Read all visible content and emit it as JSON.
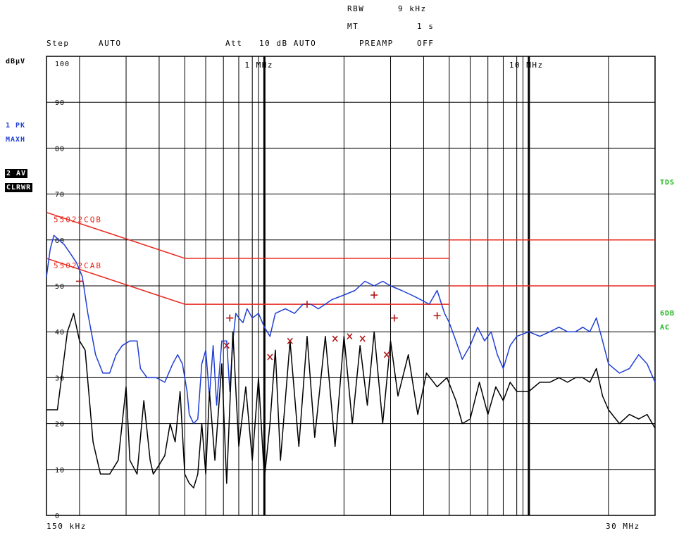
{
  "header": {
    "rbw_label": "RBW",
    "rbw_value": "9 kHz",
    "mt_label": "MT",
    "mt_value": "1 s",
    "step_label": "Step",
    "step_value": "AUTO",
    "att_label": "Att",
    "att_value": "10 dB AUTO",
    "preamp_label": "PREAMP",
    "preamp_value": "OFF"
  },
  "left_panel": {
    "unit": "dBµV",
    "trace1_line1": "1 PK",
    "trace1_line2": "MAXH",
    "trace2_line1": "2 AV",
    "trace2_line2": "CLRWR"
  },
  "right_panel": {
    "tds": "TDS",
    "db6": "6DB",
    "ac": "AC"
  },
  "colors": {
    "trace1": "#1f3fd6",
    "trace2": "#000000",
    "limit": "#e8281e",
    "markers": "#b01818",
    "side_text": "#18b418"
  },
  "chart_data": {
    "type": "line",
    "x_scale": "log",
    "xlim_mhz": [
      0.15,
      30
    ],
    "ylim": [
      0,
      100
    ],
    "y_ticks": [
      0,
      10,
      20,
      30,
      40,
      50,
      60,
      70,
      80,
      90,
      100
    ],
    "x_tick_labels": [
      {
        "label": "1 MHz",
        "x_mhz": 1
      },
      {
        "label": "10 MHz",
        "x_mhz": 10
      }
    ],
    "x_start_label": "150 kHz",
    "x_end_label": "30 MHz",
    "limit_lines": [
      {
        "name": "55022CQB",
        "points": [
          [
            0.15,
            66
          ],
          [
            0.5,
            56
          ],
          [
            5,
            56
          ],
          [
            5,
            60
          ],
          [
            30,
            60
          ]
        ]
      },
      {
        "name": "55022CAB",
        "points": [
          [
            0.15,
            56
          ],
          [
            0.5,
            46
          ],
          [
            5,
            46
          ],
          [
            5,
            50
          ],
          [
            30,
            50
          ]
        ]
      }
    ],
    "series": [
      {
        "name": "1 PK MAXH",
        "points": [
          [
            0.15,
            52
          ],
          [
            0.155,
            58
          ],
          [
            0.16,
            61
          ],
          [
            0.175,
            59
          ],
          [
            0.185,
            57
          ],
          [
            0.195,
            55
          ],
          [
            0.205,
            52
          ],
          [
            0.215,
            44
          ],
          [
            0.23,
            35
          ],
          [
            0.245,
            31
          ],
          [
            0.26,
            31
          ],
          [
            0.275,
            35
          ],
          [
            0.29,
            37
          ],
          [
            0.31,
            38
          ],
          [
            0.33,
            38
          ],
          [
            0.34,
            32
          ],
          [
            0.36,
            30
          ],
          [
            0.39,
            30
          ],
          [
            0.42,
            29
          ],
          [
            0.45,
            33
          ],
          [
            0.47,
            35
          ],
          [
            0.49,
            33
          ],
          [
            0.51,
            27
          ],
          [
            0.52,
            22
          ],
          [
            0.54,
            20
          ],
          [
            0.56,
            21
          ],
          [
            0.58,
            33
          ],
          [
            0.6,
            36
          ],
          [
            0.62,
            26
          ],
          [
            0.64,
            37
          ],
          [
            0.66,
            24
          ],
          [
            0.69,
            38
          ],
          [
            0.72,
            38
          ],
          [
            0.74,
            27
          ],
          [
            0.76,
            38
          ],
          [
            0.78,
            44
          ],
          [
            0.8,
            43
          ],
          [
            0.83,
            42
          ],
          [
            0.86,
            45
          ],
          [
            0.9,
            43
          ],
          [
            0.95,
            44
          ],
          [
            1.0,
            41
          ],
          [
            1.05,
            39
          ],
          [
            1.1,
            44
          ],
          [
            1.2,
            45
          ],
          [
            1.3,
            44
          ],
          [
            1.4,
            46
          ],
          [
            1.5,
            46
          ],
          [
            1.6,
            45
          ],
          [
            1.8,
            47
          ],
          [
            2.0,
            48
          ],
          [
            2.2,
            49
          ],
          [
            2.4,
            51
          ],
          [
            2.6,
            50
          ],
          [
            2.8,
            51
          ],
          [
            3.0,
            50
          ],
          [
            3.3,
            49
          ],
          [
            3.6,
            48
          ],
          [
            3.9,
            47
          ],
          [
            4.2,
            46
          ],
          [
            4.5,
            49
          ],
          [
            4.8,
            44
          ],
          [
            5.0,
            42
          ],
          [
            5.3,
            38
          ],
          [
            5.6,
            34
          ],
          [
            6.0,
            37
          ],
          [
            6.4,
            41
          ],
          [
            6.8,
            38
          ],
          [
            7.2,
            40
          ],
          [
            7.6,
            35
          ],
          [
            8.0,
            32
          ],
          [
            8.5,
            37
          ],
          [
            9.0,
            39
          ],
          [
            10,
            40
          ],
          [
            11,
            39
          ],
          [
            12,
            40
          ],
          [
            13,
            41
          ],
          [
            14,
            40
          ],
          [
            15,
            40
          ],
          [
            16,
            41
          ],
          [
            17,
            40
          ],
          [
            18,
            43
          ],
          [
            19,
            38
          ],
          [
            20,
            33
          ],
          [
            22,
            31
          ],
          [
            24,
            32
          ],
          [
            26,
            35
          ],
          [
            28,
            33
          ],
          [
            30,
            29
          ]
        ]
      },
      {
        "name": "2 AV CLRWR",
        "points": [
          [
            0.15,
            23
          ],
          [
            0.165,
            23
          ],
          [
            0.18,
            40
          ],
          [
            0.19,
            44
          ],
          [
            0.2,
            38
          ],
          [
            0.21,
            36
          ],
          [
            0.225,
            16
          ],
          [
            0.24,
            9
          ],
          [
            0.26,
            9
          ],
          [
            0.28,
            12
          ],
          [
            0.3,
            28
          ],
          [
            0.31,
            12
          ],
          [
            0.33,
            9
          ],
          [
            0.35,
            25
          ],
          [
            0.37,
            12
          ],
          [
            0.38,
            9
          ],
          [
            0.4,
            11
          ],
          [
            0.42,
            13
          ],
          [
            0.44,
            20
          ],
          [
            0.46,
            16
          ],
          [
            0.48,
            27
          ],
          [
            0.5,
            9
          ],
          [
            0.52,
            7
          ],
          [
            0.54,
            6
          ],
          [
            0.56,
            9
          ],
          [
            0.58,
            20
          ],
          [
            0.6,
            9
          ],
          [
            0.62,
            27
          ],
          [
            0.65,
            12
          ],
          [
            0.69,
            33
          ],
          [
            0.72,
            7
          ],
          [
            0.76,
            40
          ],
          [
            0.8,
            15
          ],
          [
            0.85,
            28
          ],
          [
            0.9,
            12
          ],
          [
            0.95,
            30
          ],
          [
            1.0,
            8
          ],
          [
            1.05,
            20
          ],
          [
            1.1,
            36
          ],
          [
            1.15,
            12
          ],
          [
            1.25,
            38
          ],
          [
            1.35,
            15
          ],
          [
            1.45,
            39
          ],
          [
            1.55,
            17
          ],
          [
            1.7,
            39
          ],
          [
            1.85,
            15
          ],
          [
            2.0,
            39
          ],
          [
            2.15,
            20
          ],
          [
            2.3,
            37
          ],
          [
            2.45,
            24
          ],
          [
            2.6,
            40
          ],
          [
            2.8,
            20
          ],
          [
            3.0,
            38
          ],
          [
            3.2,
            26
          ],
          [
            3.5,
            35
          ],
          [
            3.8,
            22
          ],
          [
            4.1,
            31
          ],
          [
            4.5,
            28
          ],
          [
            4.9,
            30
          ],
          [
            5.3,
            25
          ],
          [
            5.6,
            20
          ],
          [
            6.0,
            21
          ],
          [
            6.5,
            29
          ],
          [
            7.0,
            22
          ],
          [
            7.5,
            28
          ],
          [
            8.0,
            25
          ],
          [
            8.5,
            29
          ],
          [
            9.0,
            27
          ],
          [
            10,
            27
          ],
          [
            11,
            29
          ],
          [
            12,
            29
          ],
          [
            13,
            30
          ],
          [
            14,
            29
          ],
          [
            15,
            30
          ],
          [
            16,
            30
          ],
          [
            17,
            29
          ],
          [
            18,
            32
          ],
          [
            19,
            26
          ],
          [
            20,
            23
          ],
          [
            22,
            20
          ],
          [
            24,
            22
          ],
          [
            26,
            21
          ],
          [
            28,
            22
          ],
          [
            30,
            19
          ]
        ]
      }
    ],
    "markers_plus": [
      [
        0.2,
        51
      ],
      [
        0.74,
        43
      ],
      [
        1.45,
        46
      ],
      [
        2.6,
        48
      ],
      [
        3.1,
        43
      ],
      [
        4.5,
        43.5
      ]
    ],
    "markers_x": [
      [
        0.72,
        37
      ],
      [
        1.05,
        34.5
      ],
      [
        1.25,
        38
      ],
      [
        1.85,
        38.5
      ],
      [
        2.1,
        39
      ],
      [
        2.35,
        38.5
      ],
      [
        2.9,
        35
      ]
    ]
  }
}
